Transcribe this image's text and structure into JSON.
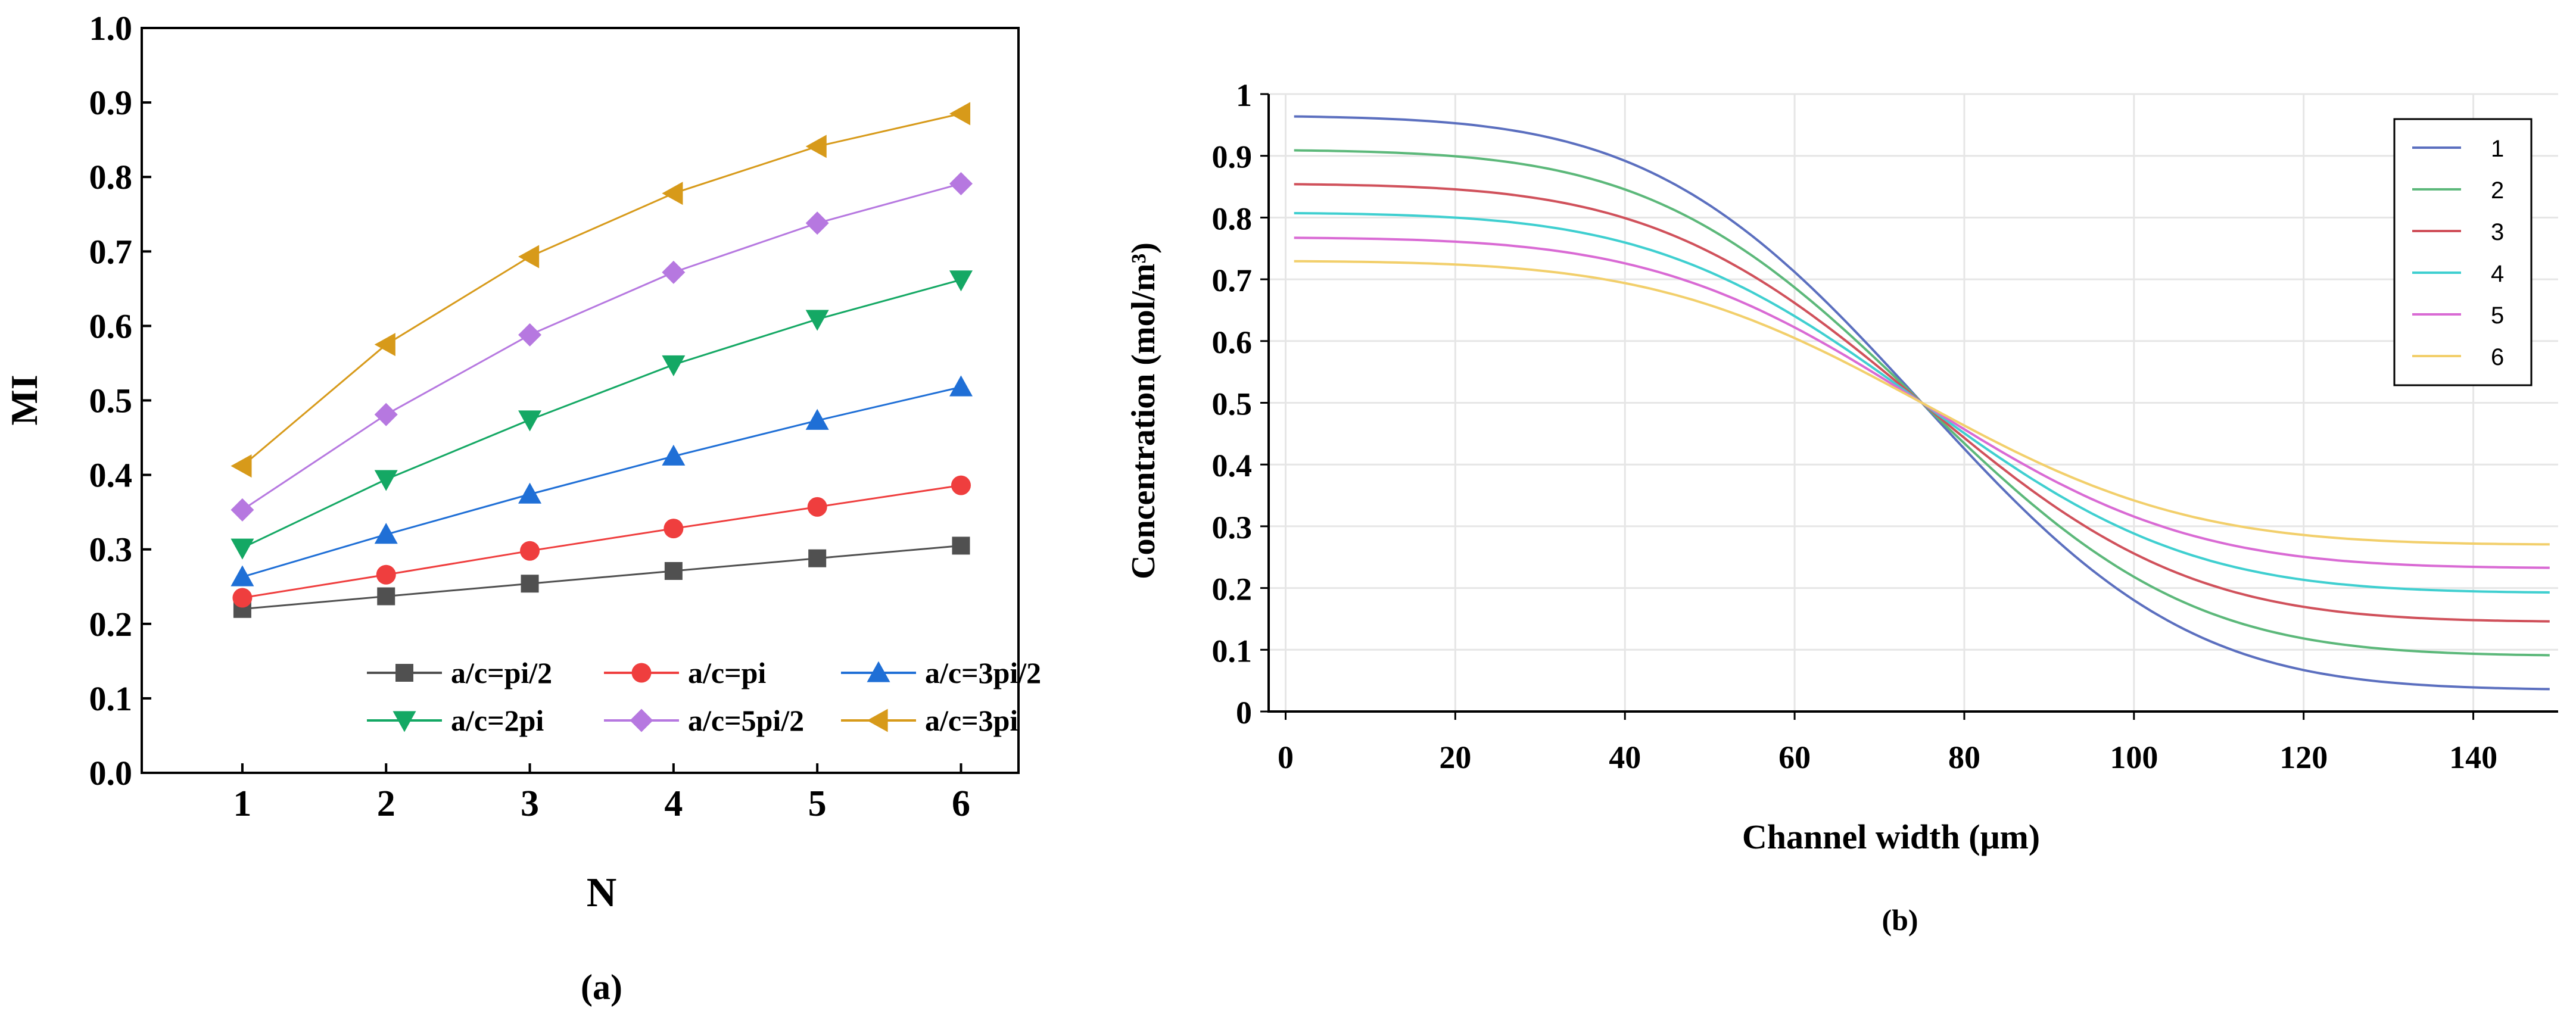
{
  "chart_data": [
    {
      "type": "line",
      "panel_label": "(a)",
      "xlabel": "N",
      "ylabel": "MI",
      "xlim": [
        0.3,
        6.4
      ],
      "ylim": [
        0.0,
        1.0
      ],
      "x_ticks": [
        "1",
        "2",
        "3",
        "4",
        "5",
        "6"
      ],
      "y_ticks": [
        "0.0",
        "0.1",
        "0.2",
        "0.3",
        "0.4",
        "0.5",
        "0.6",
        "0.7",
        "0.8",
        "0.9",
        "1.0"
      ],
      "x": [
        1,
        2,
        3,
        4,
        5,
        6
      ],
      "legend_position": "lower-right",
      "series": [
        {
          "name": "a/c=pi/2",
          "marker": "square",
          "color": "#505050",
          "values": [
            0.22,
            0.237,
            0.254,
            0.271,
            0.288,
            0.305
          ]
        },
        {
          "name": "a/c=pi",
          "marker": "circle",
          "color": "#ef3e3e",
          "values": [
            0.235,
            0.266,
            0.298,
            0.328,
            0.357,
            0.386
          ]
        },
        {
          "name": "a/c=3pi/2",
          "marker": "triangle-up",
          "color": "#1f6fd6",
          "values": [
            0.263,
            0.32,
            0.374,
            0.425,
            0.473,
            0.518
          ]
        },
        {
          "name": "a/c=2pi",
          "marker": "triangle-down",
          "color": "#14a864",
          "values": [
            0.302,
            0.394,
            0.474,
            0.548,
            0.609,
            0.662
          ]
        },
        {
          "name": "a/c=5pi/2",
          "marker": "diamond",
          "color": "#b678e0",
          "values": [
            0.353,
            0.481,
            0.588,
            0.672,
            0.738,
            0.791
          ]
        },
        {
          "name": "a/c=3pi",
          "marker": "triangle-left",
          "color": "#d79a1a",
          "values": [
            0.412,
            0.575,
            0.693,
            0.778,
            0.841,
            0.885
          ]
        }
      ]
    },
    {
      "type": "line",
      "panel_label": "(b)",
      "xlabel": "Channel width (μm)",
      "ylabel": "Concentration (mol/m³)",
      "xlim": [
        -2,
        150
      ],
      "ylim": [
        0,
        1
      ],
      "grid": true,
      "x_ticks": [
        "0",
        "20",
        "40",
        "60",
        "80",
        "100",
        "120",
        "140"
      ],
      "y_ticks": [
        "0",
        "0.1",
        "0.2",
        "0.3",
        "0.4",
        "0.5",
        "0.6",
        "0.7",
        "0.8",
        "0.9",
        "1"
      ],
      "legend_position": "top-right",
      "curve_model": {
        "center_x": 75,
        "center_y": 0.5,
        "sigma": 35
      },
      "series": [
        {
          "name": "1",
          "color": "#5b6fbf",
          "left_value": 0.965,
          "right_value": 0.035
        },
        {
          "name": "2",
          "color": "#5cb87a",
          "left_value": 0.91,
          "right_value": 0.09
        },
        {
          "name": "3",
          "color": "#d0515b",
          "left_value": 0.855,
          "right_value": 0.145
        },
        {
          "name": "4",
          "color": "#3fcfd0",
          "left_value": 0.808,
          "right_value": 0.192
        },
        {
          "name": "5",
          "color": "#d96ad4",
          "left_value": 0.768,
          "right_value": 0.232
        },
        {
          "name": "6",
          "color": "#f2cf6b",
          "left_value": 0.73,
          "right_value": 0.27
        }
      ]
    }
  ]
}
